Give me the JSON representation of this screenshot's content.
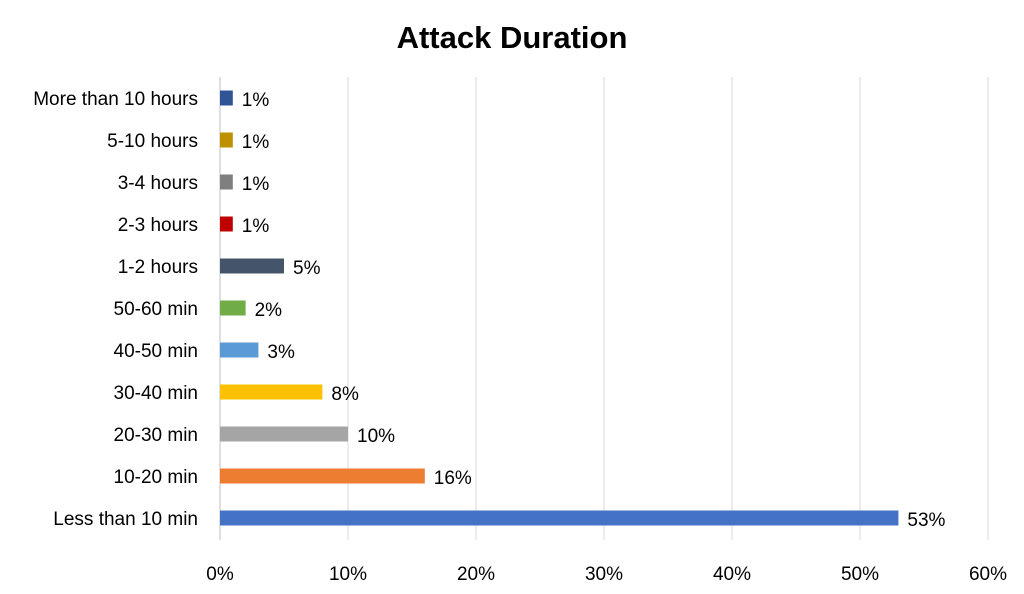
{
  "chart_data": {
    "type": "bar",
    "orientation": "horizontal",
    "title": "Attack Duration",
    "xlabel": "",
    "ylabel": "",
    "categories": [
      "More than 10 hours",
      "5-10 hours",
      "3-4 hours",
      "2-3 hours",
      "1-2 hours",
      "50-60 min",
      "40-50 min",
      "30-40 min",
      "20-30 min",
      "10-20 min",
      "Less than 10 min"
    ],
    "values": [
      1,
      1,
      1,
      1,
      5,
      2,
      3,
      8,
      10,
      16,
      53
    ],
    "value_labels": [
      "1%",
      "1%",
      "1%",
      "1%",
      "5%",
      "2%",
      "3%",
      "8%",
      "10%",
      "16%",
      "53%"
    ],
    "colors": [
      "#2f5597",
      "#bf9000",
      "#7f7f7f",
      "#c00000",
      "#44546a",
      "#70ad47",
      "#5b9bd5",
      "#ffc000",
      "#a5a5a5",
      "#ed7d31",
      "#4472c4"
    ],
    "xlim": [
      0,
      60
    ],
    "xticks": [
      0,
      10,
      20,
      30,
      40,
      50,
      60
    ],
    "xtick_labels": [
      "0%",
      "10%",
      "20%",
      "30%",
      "40%",
      "50%",
      "60%"
    ],
    "grid": true,
    "legend": "none"
  }
}
